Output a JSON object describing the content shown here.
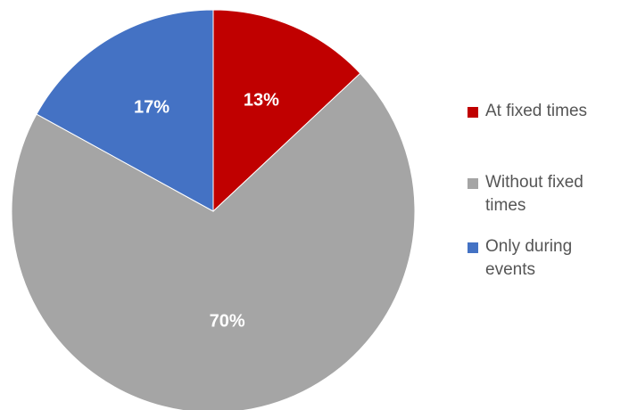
{
  "chart_data": {
    "type": "pie",
    "title": "",
    "categories": [
      "At fixed times",
      "Without fixed times",
      "Only during events"
    ],
    "values": [
      13,
      70,
      17
    ],
    "value_labels": [
      "13%",
      "70%",
      "17%"
    ],
    "colors": [
      "#c00000",
      "#a5a5a5",
      "#4472c4"
    ],
    "start_angle_deg": 0,
    "direction": "clockwise",
    "legend_position": "right"
  }
}
